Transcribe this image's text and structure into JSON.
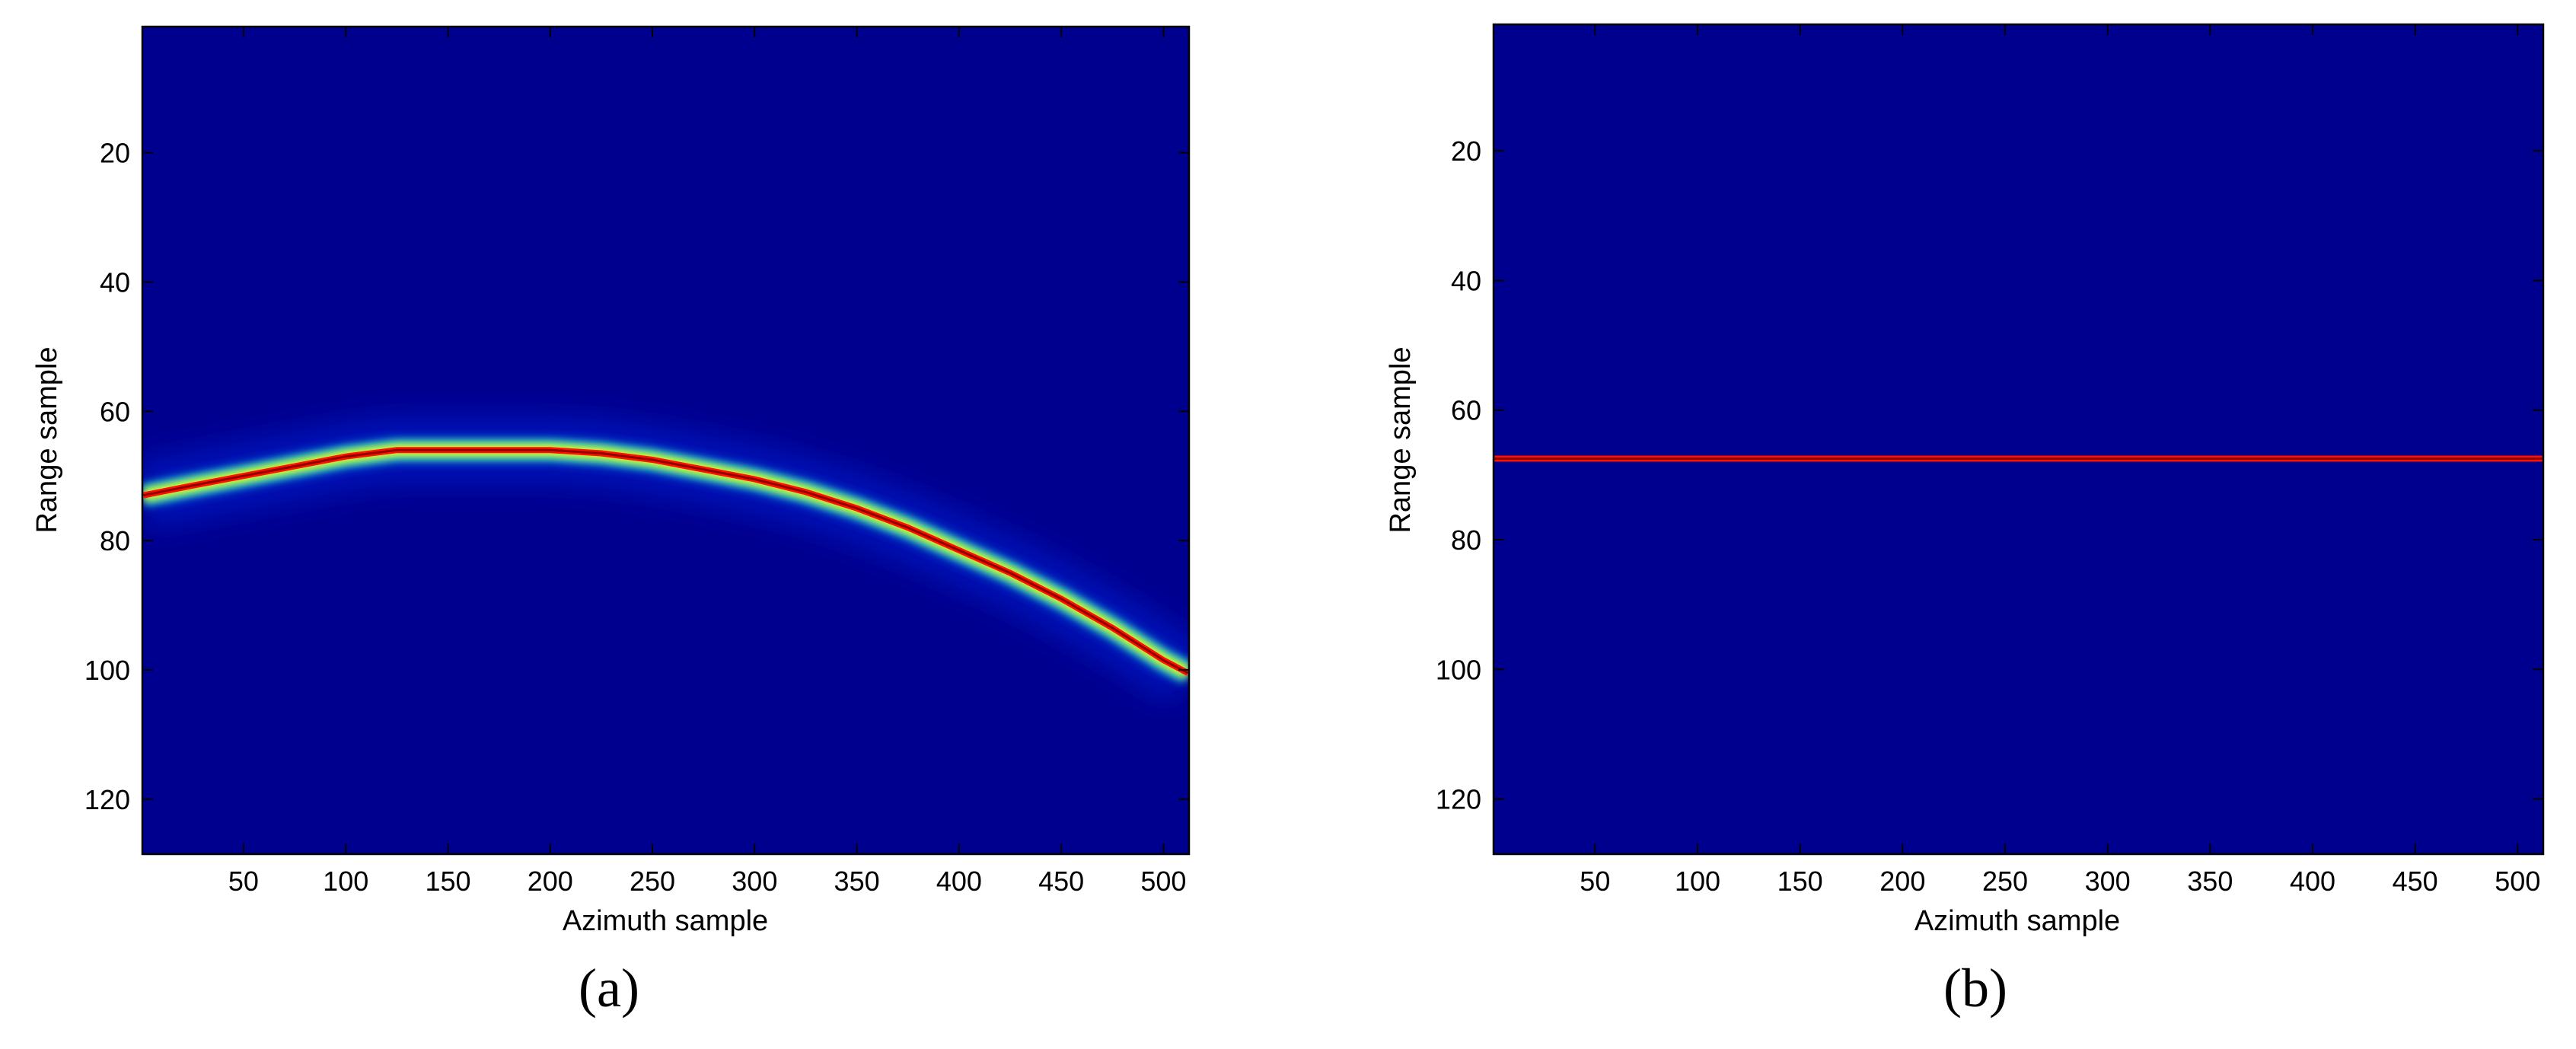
{
  "colors": {
    "background": "#00008f",
    "colormap": [
      "#00008f",
      "#0000ff",
      "#00ffff",
      "#ffff00",
      "#ff0000",
      "#800000"
    ],
    "axes": "#000000"
  },
  "chart_data": [
    {
      "type": "heatmap",
      "panel_label": "(a)",
      "colormap": "jet",
      "xlabel": "Azimuth sample",
      "ylabel": "Range sample",
      "xlim": [
        1,
        512
      ],
      "ylim": [
        1,
        128
      ],
      "y_reversed": true,
      "xticks": [
        50,
        100,
        150,
        200,
        250,
        300,
        350,
        400,
        450,
        500
      ],
      "yticks": [
        20,
        40,
        60,
        80,
        100,
        120
      ],
      "description_points": {
        "x": [
          1,
          25,
          50,
          75,
          100,
          125,
          150,
          175,
          200,
          225,
          250,
          275,
          300,
          325,
          350,
          375,
          400,
          425,
          450,
          475,
          500,
          512
        ],
        "y": [
          73,
          71.5,
          70,
          68.5,
          67,
          66,
          66,
          66,
          66,
          66.5,
          67.5,
          69,
          70.5,
          72.5,
          75,
          78,
          81.5,
          85,
          89,
          93.5,
          98.5,
          100.5
        ]
      }
    },
    {
      "type": "heatmap",
      "panel_label": "(b)",
      "colormap": "jet",
      "xlabel": "Azimuth sample",
      "ylabel": "Range sample",
      "xlim": [
        1,
        512
      ],
      "ylim": [
        1,
        128
      ],
      "y_reversed": true,
      "xticks": [
        50,
        100,
        150,
        200,
        250,
        300,
        350,
        400,
        450,
        500
      ],
      "yticks": [
        20,
        40,
        60,
        80,
        100,
        120
      ],
      "description_points": {
        "x": [
          1,
          50,
          100,
          150,
          200,
          250,
          300,
          350,
          400,
          450,
          512
        ],
        "y": [
          67.5,
          67.5,
          67.5,
          67.5,
          67.5,
          67.5,
          67.5,
          67.5,
          67.5,
          67.5,
          67.5
        ]
      }
    }
  ]
}
